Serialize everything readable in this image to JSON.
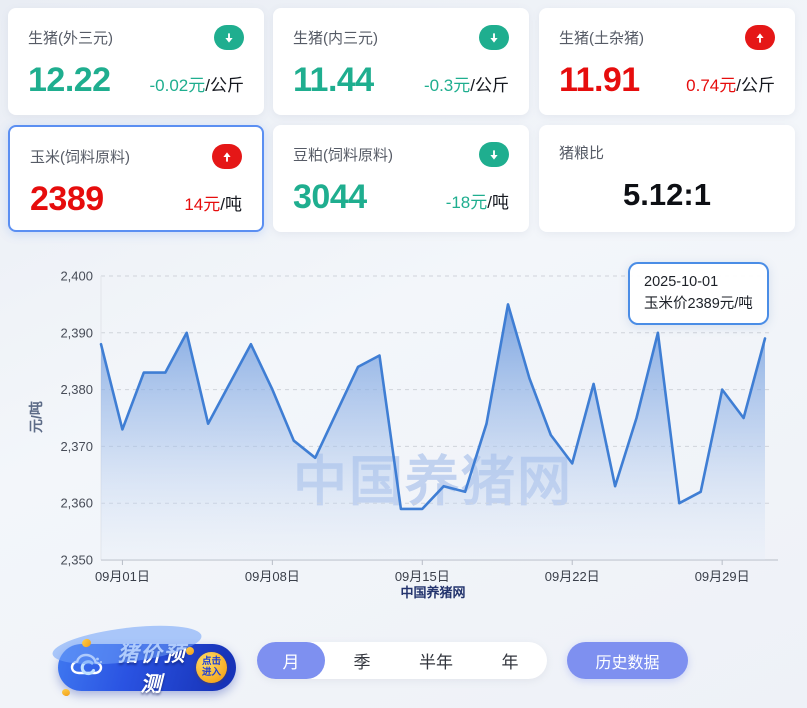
{
  "cards": [
    {
      "title": "生猪(外三元)",
      "value": "12.22",
      "change": "-0.02元",
      "unit": "/公斤",
      "trend": "down"
    },
    {
      "title": "生猪(内三元)",
      "value": "11.44",
      "change": "-0.3元",
      "unit": "/公斤",
      "trend": "down"
    },
    {
      "title": "生猪(土杂猪)",
      "value": "11.91",
      "change": "0.74元",
      "unit": "/公斤",
      "trend": "up"
    },
    {
      "title": "玉米(饲料原料)",
      "value": "2389",
      "change": "14元",
      "unit": "/吨",
      "trend": "up",
      "selected": true
    },
    {
      "title": "豆粕(饲料原料)",
      "value": "3044",
      "change": "-18元",
      "unit": "/吨",
      "trend": "down"
    },
    {
      "title": "猪粮比",
      "value": "5.12:1",
      "trend": "none"
    }
  ],
  "chart_data": {
    "type": "area",
    "series_name": "玉米价",
    "x": [
      "2025-08-31",
      "2025-09-01",
      "2025-09-02",
      "2025-09-03",
      "2025-09-04",
      "2025-09-05",
      "2025-09-06",
      "2025-09-07",
      "2025-09-08",
      "2025-09-09",
      "2025-09-10",
      "2025-09-11",
      "2025-09-12",
      "2025-09-13",
      "2025-09-14",
      "2025-09-15",
      "2025-09-16",
      "2025-09-17",
      "2025-09-18",
      "2025-09-19",
      "2025-09-20",
      "2025-09-21",
      "2025-09-22",
      "2025-09-23",
      "2025-09-24",
      "2025-09-25",
      "2025-09-26",
      "2025-09-27",
      "2025-09-28",
      "2025-09-29",
      "2025-09-30",
      "2025-10-01"
    ],
    "values": [
      2388,
      2373,
      2383,
      2383,
      2390,
      2374,
      2381,
      2388,
      2380,
      2371,
      2368,
      2376,
      2384,
      2386,
      2359,
      2359,
      2363,
      2362,
      2374,
      2395,
      2382,
      2372,
      2367,
      2381,
      2363,
      2375,
      2390,
      2360,
      2362,
      2380,
      2375,
      2389
    ],
    "ylabel": "元/吨",
    "ylim": [
      2350,
      2400
    ],
    "yticks": [
      "2,350",
      "2,360",
      "2,370",
      "2,380",
      "2,390",
      "2,400"
    ],
    "xticks": [
      "09月01日",
      "09月08日",
      "09月15日",
      "09月22日",
      "09月29日"
    ],
    "xtick_indices": [
      1,
      8,
      15,
      22,
      29
    ],
    "grid": "horizontal dashed",
    "legend": "none",
    "watermark": "中国养猪网",
    "source_label": "中国养猪网",
    "tooltip": {
      "date": "2025-10-01",
      "text": "玉米价2389元/吨"
    }
  },
  "controls": {
    "predict_button": {
      "label": "猪价预测",
      "badge": "点击进入"
    },
    "tabs": [
      {
        "label": "月",
        "selected": true
      },
      {
        "label": "季",
        "selected": false
      },
      {
        "label": "半年",
        "selected": false
      },
      {
        "label": "年",
        "selected": false
      }
    ],
    "history_button": "历史数据"
  },
  "colors": {
    "up_red": "#e51717",
    "down_green": "#1fae8f",
    "value_red": "#e60d0d",
    "accent_indigo": "#7e90f0",
    "selected_card_border": "#5b8ff2",
    "line_blue": "#3f7ed4",
    "area_top_blue": "#6296dd",
    "watermark_blue": "#b9ccee",
    "tooltip_border": "#4a8de6",
    "predict_gradient": "#3f78f0-#1733b8",
    "badge_gold": "#f5a81f"
  }
}
